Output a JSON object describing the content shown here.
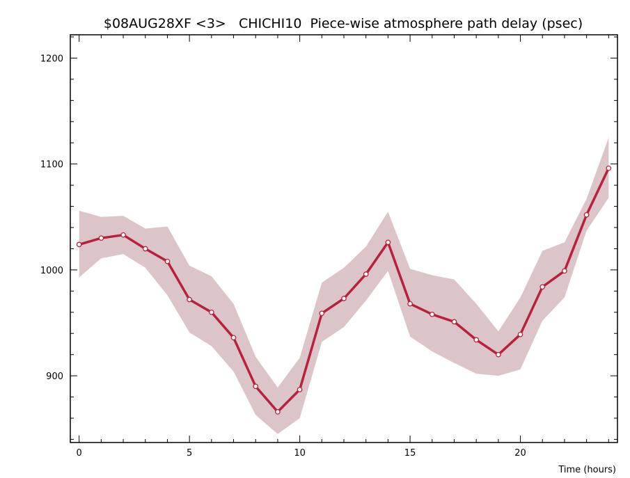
{
  "chart_data": {
    "type": "line",
    "title": "$08AUG28XF <3>   CHICHI10  Piece-wise atmosphere path delay (psec)",
    "xlabel": "Time (hours)",
    "ylabel": "",
    "xlim": [
      -0.4,
      24.4
    ],
    "ylim": [
      837,
      1222
    ],
    "x_ticks": [
      0,
      5,
      10,
      15,
      20
    ],
    "y_ticks": [
      900,
      1000,
      1100,
      1200
    ],
    "grid": false,
    "colors": {
      "line": "#b8203c",
      "band": "#dcc5c9",
      "marker_fill": "#ffffff",
      "axis": "#000000"
    },
    "series": [
      {
        "x": [
          0,
          1,
          2,
          3,
          4,
          5,
          6,
          7,
          8,
          9,
          10,
          11,
          12,
          13,
          14,
          15,
          16,
          17,
          18,
          19,
          20,
          21,
          22,
          23,
          24
        ],
        "values": [
          1024,
          1030,
          1033,
          1020,
          1008,
          972,
          960,
          936,
          890,
          866,
          887,
          959,
          973,
          996,
          1026,
          968,
          958,
          951,
          934,
          920,
          939,
          984,
          999,
          1052,
          1096
        ],
        "upper": [
          1056,
          1050,
          1051,
          1039,
          1041,
          1004,
          994,
          968,
          918,
          889,
          917,
          988,
          1002,
          1022,
          1055,
          1001,
          995,
          991,
          968,
          942,
          974,
          1018,
          1026,
          1067,
          1125
        ],
        "lower": [
          993,
          1011,
          1015,
          1002,
          976,
          941,
          928,
          904,
          863,
          845,
          860,
          932,
          946,
          971,
          999,
          937,
          923,
          912,
          902,
          900,
          906,
          952,
          974,
          1037,
          1068
        ]
      }
    ]
  }
}
